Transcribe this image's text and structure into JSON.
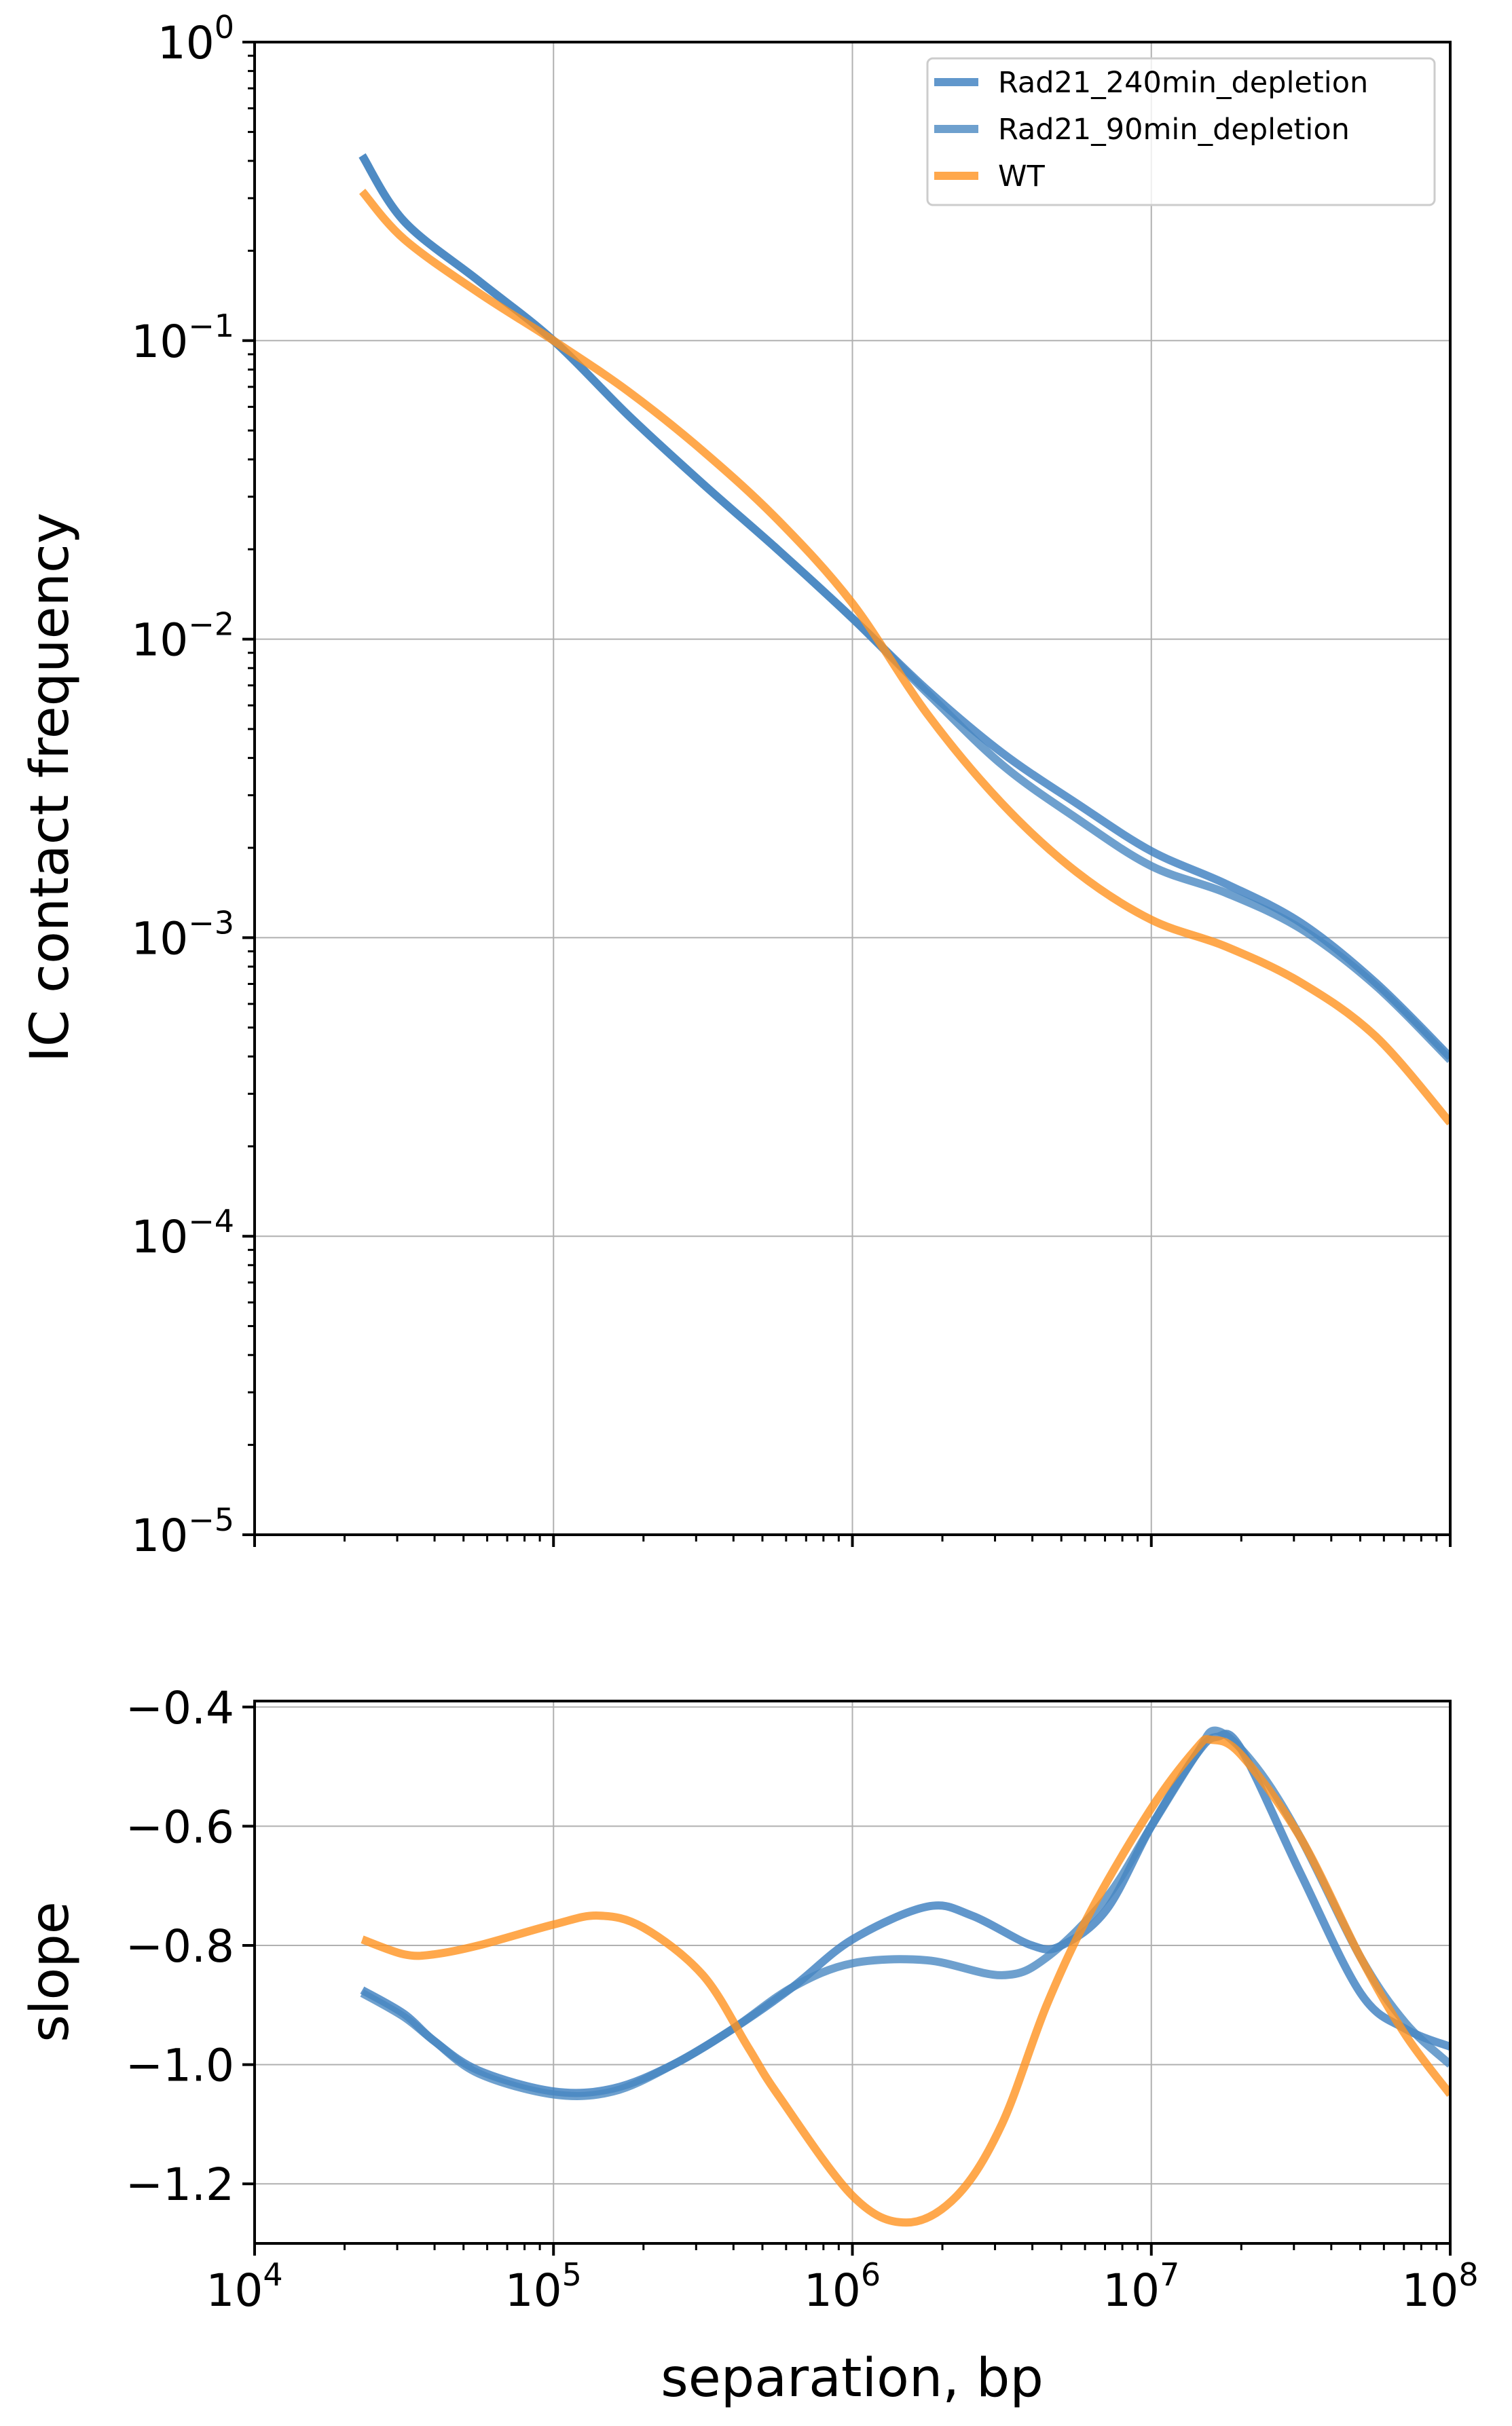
{
  "chart_data": [
    {
      "type": "line",
      "title": "",
      "xlabel": "",
      "ylabel": "IC contact frequency",
      "xscale": "log",
      "yscale": "log",
      "xlim": [
        10000,
        100000000
      ],
      "ylim": [
        1e-05,
        1
      ],
      "grid": true,
      "legend_position": "top-right",
      "x_ticks": [
        {
          "base": "10",
          "exp": "4",
          "v": 4
        },
        {
          "base": "10",
          "exp": "5",
          "v": 5
        },
        {
          "base": "10",
          "exp": "6",
          "v": 6
        },
        {
          "base": "10",
          "exp": "7",
          "v": 7
        },
        {
          "base": "10",
          "exp": "8",
          "v": 8
        }
      ],
      "y_ticks": [
        {
          "base": "10",
          "exp": "0",
          "v": 0
        },
        {
          "base": "10",
          "exp": "−1",
          "v": -1
        },
        {
          "base": "10",
          "exp": "−2",
          "v": -2
        },
        {
          "base": "10",
          "exp": "−3",
          "v": -3
        },
        {
          "base": "10",
          "exp": "−4",
          "v": -4
        },
        {
          "base": "10",
          "exp": "−5",
          "v": -5
        }
      ],
      "x_log10": [
        4.36,
        4.5,
        4.75,
        5.0,
        5.25,
        5.5,
        5.75,
        6.0,
        6.25,
        6.5,
        6.75,
        7.0,
        7.25,
        7.5,
        7.75,
        8.0
      ],
      "series": [
        {
          "name": "Rad21_240min_depletion",
          "color": "#3a7dbf",
          "log10_values": [
            -0.38,
            -0.6,
            -0.8,
            -1.0,
            -1.25,
            -1.48,
            -1.7,
            -1.93,
            -2.17,
            -2.38,
            -2.55,
            -2.71,
            -2.82,
            -2.95,
            -3.15,
            -3.4
          ]
        },
        {
          "name": "Rad21_90min_depletion",
          "color": "#4a88c2",
          "log10_values": [
            -0.38,
            -0.6,
            -0.8,
            -1.0,
            -1.25,
            -1.48,
            -1.7,
            -1.93,
            -2.18,
            -2.42,
            -2.6,
            -2.76,
            -2.85,
            -2.97,
            -3.16,
            -3.41
          ]
        },
        {
          "name": "WT",
          "color": "#ff921f",
          "log10_values": [
            -0.5,
            -0.66,
            -0.84,
            -1.0,
            -1.17,
            -1.37,
            -1.6,
            -1.88,
            -2.25,
            -2.55,
            -2.78,
            -2.94,
            -3.03,
            -3.15,
            -3.33,
            -3.62
          ]
        }
      ]
    },
    {
      "type": "line",
      "title": "",
      "xlabel": "separation, bp",
      "ylabel": "slope",
      "xscale": "log",
      "xlim": [
        10000,
        100000000
      ],
      "ylim": [
        -1.3,
        -0.39
      ],
      "grid": true,
      "x_ticks": [
        {
          "base": "10",
          "exp": "4",
          "v": 4
        },
        {
          "base": "10",
          "exp": "5",
          "v": 5
        },
        {
          "base": "10",
          "exp": "6",
          "v": 6
        },
        {
          "base": "10",
          "exp": "7",
          "v": 7
        },
        {
          "base": "10",
          "exp": "8",
          "v": 8
        }
      ],
      "y_ticks": [
        {
          "label": "−0.4",
          "v": -0.4
        },
        {
          "label": "−0.6",
          "v": -0.6
        },
        {
          "label": "−0.8",
          "v": -0.8
        },
        {
          "label": "−1.0",
          "v": -1.0
        },
        {
          "label": "−1.2",
          "v": -1.2
        }
      ],
      "series": [
        {
          "name": "Rad21_240min_depletion",
          "color": "#3a7dbf",
          "x_log10": [
            4.36,
            4.5,
            4.6,
            4.75,
            5.0,
            5.2,
            5.4,
            5.6,
            5.8,
            6.0,
            6.25,
            6.4,
            6.6,
            6.7,
            6.85,
            7.0,
            7.15,
            7.22,
            7.3,
            7.5,
            7.7,
            7.85,
            8.0
          ],
          "values": [
            -0.875,
            -0.915,
            -0.96,
            -1.01,
            -1.045,
            -1.04,
            -1.0,
            -0.94,
            -0.87,
            -0.79,
            -0.735,
            -0.75,
            -0.8,
            -0.8,
            -0.74,
            -0.6,
            -0.48,
            -0.45,
            -0.47,
            -0.68,
            -0.88,
            -0.94,
            -0.97
          ]
        },
        {
          "name": "Rad21_90min_depletion",
          "color": "#4a88c2",
          "x_log10": [
            4.36,
            4.5,
            4.6,
            4.75,
            5.0,
            5.2,
            5.4,
            5.6,
            5.8,
            6.0,
            6.25,
            6.5,
            6.65,
            6.85,
            7.0,
            7.15,
            7.22,
            7.35,
            7.5,
            7.7,
            7.85,
            8.0
          ],
          "values": [
            -0.88,
            -0.92,
            -0.96,
            -1.015,
            -1.05,
            -1.045,
            -1.0,
            -0.94,
            -0.87,
            -0.83,
            -0.825,
            -0.85,
            -0.82,
            -0.72,
            -0.6,
            -0.48,
            -0.44,
            -0.5,
            -0.62,
            -0.82,
            -0.93,
            -1.0
          ]
        },
        {
          "name": "WT",
          "color": "#ff921f",
          "x_log10": [
            4.36,
            4.5,
            4.6,
            4.75,
            5.0,
            5.15,
            5.3,
            5.5,
            5.65,
            5.75,
            6.0,
            6.18,
            6.35,
            6.5,
            6.65,
            6.8,
            7.0,
            7.15,
            7.2,
            7.3,
            7.5,
            7.7,
            7.85,
            8.0
          ],
          "values": [
            -0.79,
            -0.815,
            -0.815,
            -0.8,
            -0.765,
            -0.75,
            -0.77,
            -0.85,
            -0.97,
            -1.05,
            -1.22,
            -1.265,
            -1.22,
            -1.1,
            -0.9,
            -0.74,
            -0.57,
            -0.47,
            -0.455,
            -0.48,
            -0.62,
            -0.82,
            -0.95,
            -1.05
          ]
        }
      ]
    }
  ]
}
